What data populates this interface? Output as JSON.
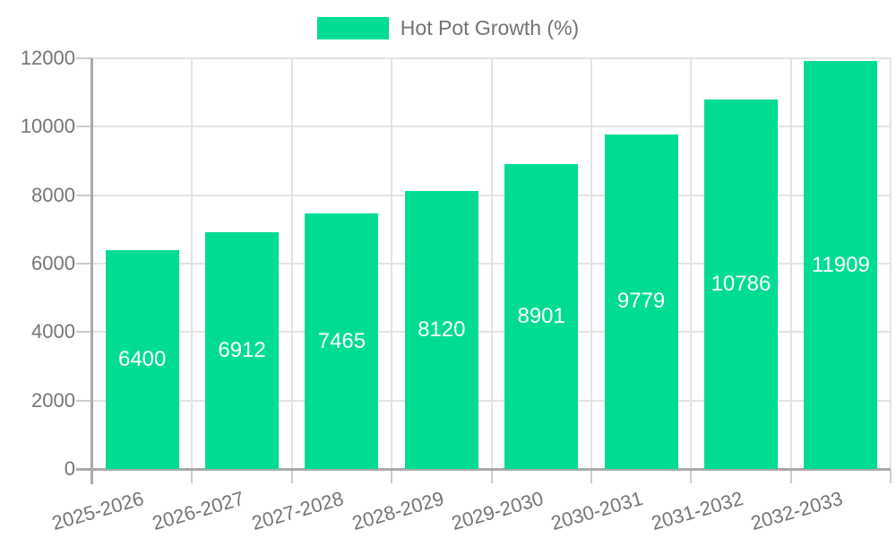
{
  "chart_data": {
    "type": "bar",
    "title": "Hot Pot Growth (%)",
    "legend": {
      "position": "top",
      "entries": [
        {
          "label": "Hot Pot Growth (%)",
          "color": "#00DC94"
        }
      ]
    },
    "categories": [
      "2025-2026",
      "2026-2027",
      "2027-2028",
      "2028-2029",
      "2029-2030",
      "2030-2031",
      "2031-2032",
      "2032-2033"
    ],
    "series": [
      {
        "name": "Hot Pot Growth (%)",
        "color": "#00DC94",
        "values": [
          6400,
          6912,
          7465,
          8120,
          8901,
          9779,
          10786,
          11909
        ]
      }
    ],
    "value_labels": {
      "visible": true,
      "position": "inside-center",
      "color": "#ffffff"
    },
    "xlabel": "",
    "ylabel": "",
    "ylim": [
      0,
      12000
    ],
    "yticks": [
      0,
      2000,
      4000,
      6000,
      8000,
      10000,
      12000
    ],
    "grid": true
  },
  "colors": {
    "bar": "#00DC94",
    "grid_line": "#e3e3e3",
    "tick": "#cccccc",
    "axis_line": "#aaaaaa",
    "axis_text": "#757575",
    "legend_text": "#737373",
    "value_text": "#ffffff",
    "background": "#ffffff"
  }
}
